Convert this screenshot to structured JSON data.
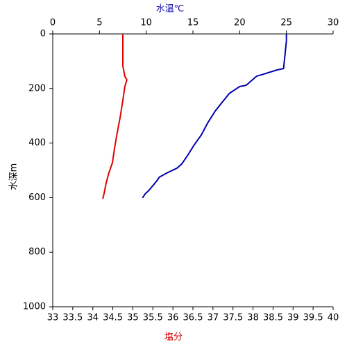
{
  "chart_data": {
    "type": "line",
    "y_label": "水深m",
    "ylim": [
      0,
      1000
    ],
    "y_inverted": true,
    "yticks": [
      0,
      200,
      400,
      600,
      800,
      1000
    ],
    "top_axis": {
      "label": "水温℃",
      "color": "#1010b0",
      "xlim": [
        0,
        30
      ],
      "xticks": [
        0,
        5,
        10,
        15,
        20,
        25,
        30
      ]
    },
    "bottom_axis": {
      "label": "塩分",
      "color": "#d00000",
      "xlim": [
        33,
        40
      ],
      "xticks": [
        33,
        33.5,
        34,
        34.5,
        35,
        35.5,
        36,
        36.5,
        37,
        37.5,
        38,
        38.5,
        39,
        39.5,
        40
      ]
    },
    "series": [
      {
        "axis": "top",
        "color": "#0000b0",
        "x": [
          25,
          25,
          24.7,
          24,
          22.6,
          21.8,
          20.7,
          20,
          18.9,
          18,
          17.4,
          16.6,
          15.9,
          15.1,
          14.4,
          13.8,
          13.3,
          12.2,
          11.4,
          11.1,
          10.3,
          9.9,
          9.6
        ],
        "y": [
          0,
          25,
          127,
          132,
          147,
          155,
          188,
          193,
          218,
          256,
          282,
          325,
          370,
          409,
          447,
          477,
          492,
          510,
          525,
          540,
          573,
          586,
          601
        ]
      },
      {
        "axis": "bottom",
        "color": "#e00000",
        "x": [
          34.75,
          34.75,
          34.8,
          34.85,
          34.8,
          34.75,
          34.68,
          34.6,
          34.54,
          34.49,
          34.4,
          34.33,
          34.28,
          34.25
        ],
        "y": [
          0,
          117,
          155,
          168,
          193,
          244,
          307,
          370,
          421,
          472,
          510,
          548,
          586,
          604
        ]
      }
    ]
  }
}
